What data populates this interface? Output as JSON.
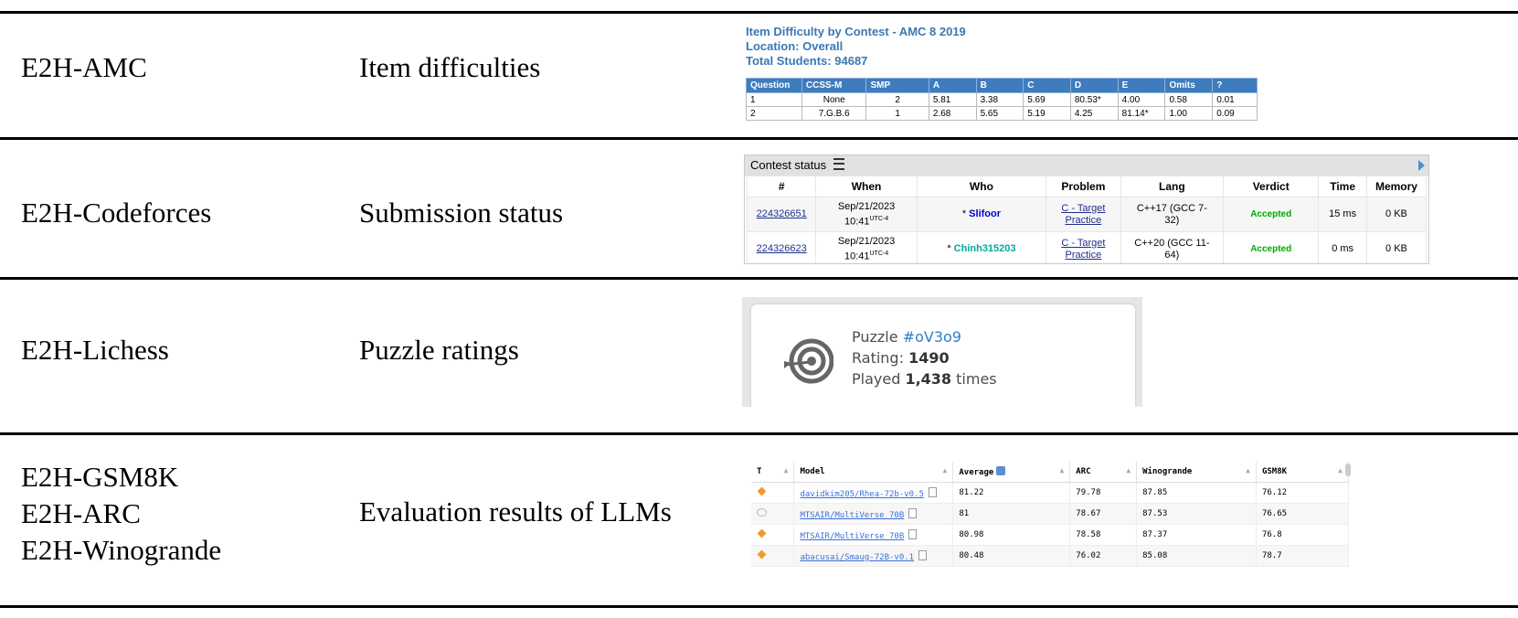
{
  "rows": [
    {
      "dataset": "E2H-AMC",
      "source": "Item difficulties"
    },
    {
      "dataset": "E2H-Codeforces",
      "source": "Submission status"
    },
    {
      "dataset": "E2H-Lichess",
      "source": "Puzzle ratings"
    },
    {
      "dataset_lines": [
        "E2H-GSM8K",
        "E2H-ARC",
        "E2H-Winogrande"
      ],
      "source": "Evaluation results of LLMs"
    }
  ],
  "amc": {
    "title": "Item Difficulty by Contest  - AMC 8  2019",
    "location": "Location: Overall",
    "total": "Total Students: 94687",
    "headers": [
      "Question",
      "CCSS-M",
      "SMP",
      "A",
      "B",
      "C",
      "D",
      "E",
      "Omits",
      "?"
    ],
    "rows": [
      [
        "1",
        "None",
        "2",
        "5.81",
        "3.38",
        "5.69",
        "80.53*",
        "4.00",
        "0.58",
        "0.01"
      ],
      [
        "2",
        "7.G.B.6",
        "1",
        "2.68",
        "5.65",
        "5.19",
        "4.25",
        "81.14*",
        "1.00",
        "0.09"
      ]
    ]
  },
  "codeforces": {
    "title": "Contest status",
    "headers": [
      "#",
      "When",
      "Who",
      "Problem",
      "Lang",
      "Verdict",
      "Time",
      "Memory"
    ],
    "rows": [
      {
        "id": "224326651",
        "date": "Sep/21/2023",
        "time": "10:41",
        "tz": "UTC-4",
        "who": "Slifoor",
        "problem_a": "C - Target",
        "problem_b": "Practice",
        "lang_a": "C++17 (GCC 7-",
        "lang_b": "32)",
        "verdict": "Accepted",
        "time_ms": "15 ms",
        "memory": "0 KB"
      },
      {
        "id": "224326623",
        "date": "Sep/21/2023",
        "time": "10:41",
        "tz": "UTC-4",
        "who": "Chinh315203",
        "problem_a": "C - Target",
        "problem_b": "Practice",
        "lang_a": "C++20 (GCC 11-",
        "lang_b": "64)",
        "verdict": "Accepted",
        "time_ms": "0 ms",
        "memory": "0 KB"
      }
    ]
  },
  "lichess": {
    "puzzle_label": "Puzzle ",
    "puzzle_id": "#oV3o9",
    "rating_label": "Rating: ",
    "rating": "1490",
    "played_label": "Played ",
    "played": "1,438",
    "played_suffix": " times"
  },
  "llm": {
    "headers": [
      "T",
      "Model",
      "Average",
      "ARC",
      "Winogrande",
      "GSM8K"
    ],
    "rows": [
      {
        "icon": "diamond-icon",
        "model": "davidkim205/Rhea-72b-v0.5",
        "avg": "81.22",
        "arc": "79.78",
        "wino": "87.85",
        "gsm": "76.12"
      },
      {
        "icon": "chat-icon",
        "model": "MTSAIR/MultiVerse_70B",
        "avg": "81",
        "arc": "78.67",
        "wino": "87.53",
        "gsm": "76.65"
      },
      {
        "icon": "diamond-icon",
        "model": "MTSAIR/MultiVerse_70B",
        "avg": "80.98",
        "arc": "78.58",
        "wino": "87.37",
        "gsm": "76.8"
      },
      {
        "icon": "diamond-icon",
        "model": "abacusai/Smaug-72B-v0.1",
        "avg": "80.48",
        "arc": "76.02",
        "wino": "85.08",
        "gsm": "78.7"
      }
    ]
  }
}
